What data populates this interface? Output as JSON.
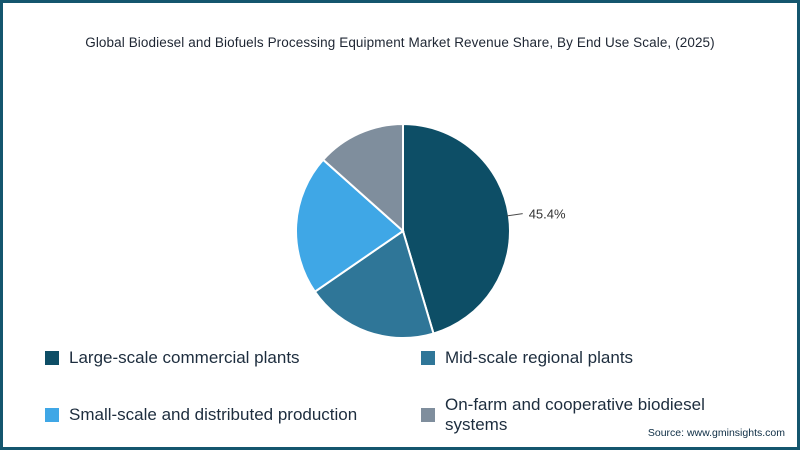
{
  "title": "Global Biodiesel and Biofuels Processing Equipment Market Revenue Share, By End Use Scale, (2025)",
  "source": "Source: www.gminsights.com",
  "frame_color": "#14566e",
  "chart_data": {
    "type": "pie",
    "title": "Global Biodiesel and Biofuels Processing Equipment Market Revenue Share, By End Use Scale, (2025)",
    "categories": [
      "Large-scale commercial plants",
      "Mid-scale regional plants",
      "Small-scale and distributed production",
      "On-farm and cooperative biodiesel systems"
    ],
    "values": [
      45.4,
      20.0,
      21.2,
      13.4
    ],
    "colors": [
      "#0d4e66",
      "#2f7698",
      "#3fa7e6",
      "#7f8e9d"
    ],
    "data_labels": [
      "45.4%"
    ],
    "start_angle_deg": 0,
    "direction": "clockwise",
    "legend_position": "bottom"
  }
}
